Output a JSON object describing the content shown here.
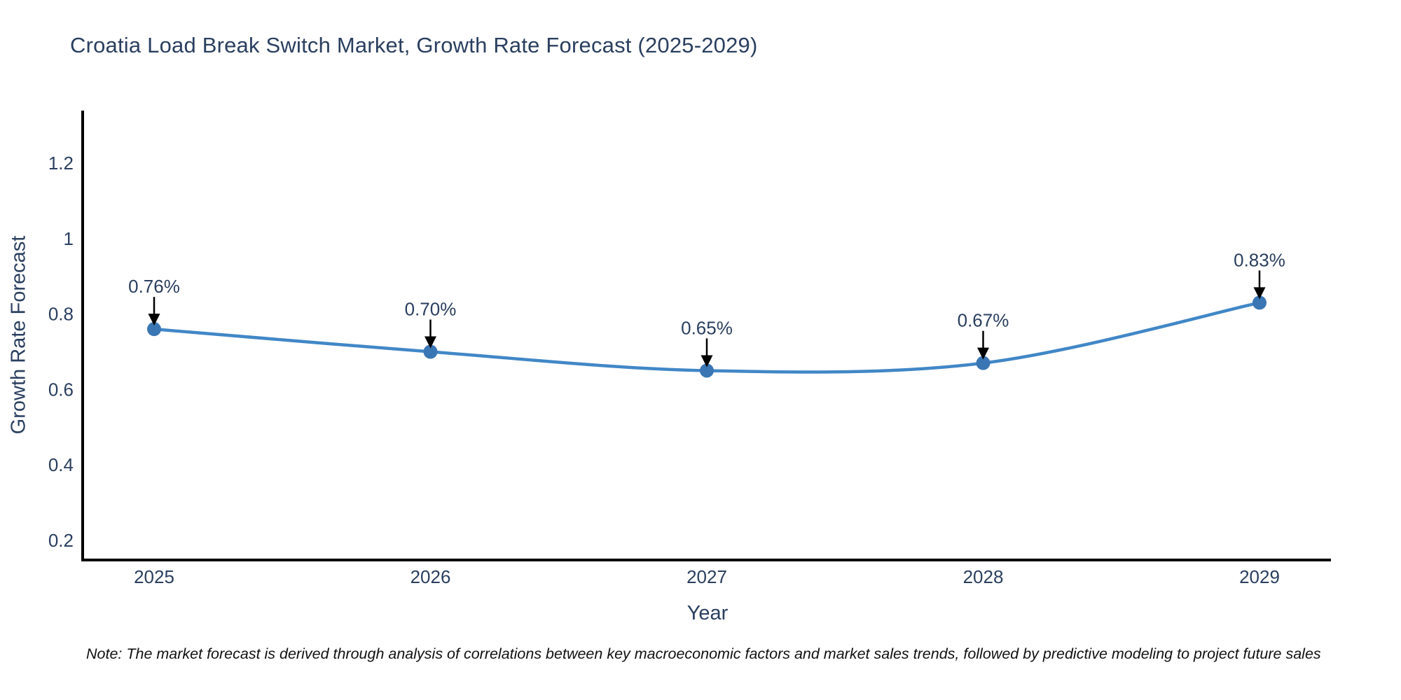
{
  "note": "Note: The market forecast is derived through analysis of correlations between key macroeconomic factors and market sales trends, followed by predictive modeling to project future sales",
  "chart_data": {
    "type": "line",
    "title": "Croatia Load Break Switch Market, Growth Rate Forecast (2025-2029)",
    "xlabel": "Year",
    "ylabel": "Growth Rate Forecast",
    "x": [
      2025,
      2026,
      2027,
      2028,
      2029
    ],
    "categories": [
      "2025",
      "2026",
      "2027",
      "2028",
      "2029"
    ],
    "values": [
      0.76,
      0.7,
      0.65,
      0.67,
      0.83
    ],
    "point_labels": [
      "0.76%",
      "0.70%",
      "0.65%",
      "0.67%",
      "0.83%"
    ],
    "series": [
      {
        "name": "Growth Rate Forecast",
        "values": [
          0.76,
          0.7,
          0.65,
          0.67,
          0.83
        ]
      }
    ],
    "unit": "%",
    "yticks": [
      0.2,
      0.4,
      0.6,
      0.8,
      1,
      1.2
    ],
    "ytick_labels": [
      "0.2",
      "0.4",
      "0.6",
      "0.8",
      "1",
      "1.2"
    ],
    "ylim": [
      0.15,
      1.33
    ],
    "xlim": [
      2024.74,
      2029.26
    ],
    "grid": false,
    "legend": "none",
    "line_shape": "spline",
    "annotations": "value labels with downward black arrows above each marker",
    "colors": {
      "line": "#4187c7",
      "marker": "#3a76b4",
      "axis": "#000000",
      "text": "#2a3f5f",
      "arrow": "#000000",
      "background": "#ffffff"
    }
  }
}
